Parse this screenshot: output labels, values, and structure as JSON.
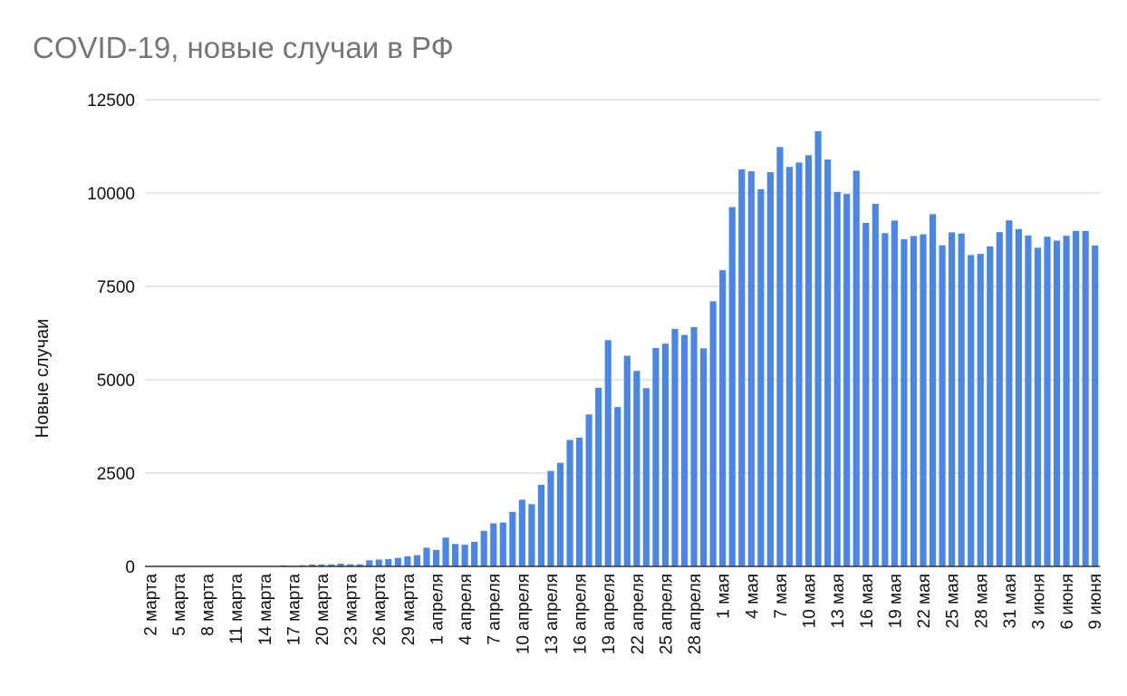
{
  "title": "COVID-19, новые случаи в РФ",
  "chart_data": {
    "type": "bar",
    "title": "COVID-19, новые случаи в РФ",
    "xlabel": "",
    "ylabel": "Новые случаи",
    "ylim": [
      0,
      12500
    ],
    "yticks": [
      0,
      2500,
      5000,
      7500,
      10000,
      12500
    ],
    "grid": true,
    "legend": "none",
    "bar_color": "#4a86e8",
    "x_tick_labels": [
      "2 марта",
      "5 марта",
      "8 марта",
      "11 марта",
      "14 марта",
      "17 марта",
      "20 марта",
      "23 марта",
      "26 марта",
      "29 марта",
      "1 апреля",
      "4 апреля",
      "7 апреля",
      "10 апреля",
      "13 апреля",
      "16 апреля",
      "19 апреля",
      "22 апреля",
      "25 апреля",
      "28 апреля",
      "1 мая",
      "4 мая",
      "7 мая",
      "10 мая",
      "13 мая",
      "16 мая",
      "19 мая",
      "22 мая",
      "25 мая",
      "28 мая",
      "31 мая",
      "3 июня",
      "6 июня",
      "9 июня"
    ],
    "categories": [
      "2 марта",
      "3 марта",
      "4 марта",
      "5 марта",
      "6 марта",
      "7 марта",
      "8 марта",
      "9 марта",
      "10 марта",
      "11 марта",
      "12 марта",
      "13 марта",
      "14 марта",
      "15 марта",
      "16 марта",
      "17 марта",
      "18 марта",
      "19 марта",
      "20 марта",
      "21 марта",
      "22 марта",
      "23 марта",
      "24 марта",
      "25 марта",
      "26 марта",
      "27 марта",
      "28 марта",
      "29 марта",
      "30 марта",
      "31 марта",
      "1 апреля",
      "2 апреля",
      "3 апреля",
      "4 апреля",
      "5 апреля",
      "6 апреля",
      "7 апреля",
      "8 апреля",
      "9 апреля",
      "10 апреля",
      "11 апреля",
      "12 апреля",
      "13 апреля",
      "14 апреля",
      "15 апреля",
      "16 апреля",
      "17 апреля",
      "18 апреля",
      "19 апреля",
      "20 апреля",
      "21 апреля",
      "22 апреля",
      "23 апреля",
      "24 апреля",
      "25 апреля",
      "26 апреля",
      "27 апреля",
      "28 апреля",
      "29 апреля",
      "30 апреля",
      "1 мая",
      "2 мая",
      "3 мая",
      "4 мая",
      "5 мая",
      "6 мая",
      "7 мая",
      "8 мая",
      "9 мая",
      "10 мая",
      "11 мая",
      "12 мая",
      "13 мая",
      "14 мая",
      "15 мая",
      "16 мая",
      "17 мая",
      "18 мая",
      "19 мая",
      "20 мая",
      "21 мая",
      "22 мая",
      "23 мая",
      "24 мая",
      "25 мая",
      "26 мая",
      "27 мая",
      "28 мая",
      "29 мая",
      "30 мая",
      "31 мая",
      "1 июня",
      "2 июня",
      "3 июня",
      "4 июня",
      "5 июня",
      "6 июня",
      "7 июня",
      "8 июня",
      "9 июня"
    ],
    "values": [
      1,
      0,
      1,
      0,
      0,
      7,
      3,
      0,
      3,
      7,
      6,
      6,
      11,
      2,
      29,
      21,
      33,
      52,
      53,
      54,
      71,
      57,
      57,
      163,
      182,
      196,
      228,
      270,
      302,
      500,
      440,
      771,
      601,
      582,
      658,
      954,
      1154,
      1175,
      1459,
      1786,
      1667,
      2186,
      2558,
      2774,
      3388,
      3448,
      4070,
      4785,
      6060,
      4268,
      5642,
      5236,
      4774,
      5849,
      5966,
      6361,
      6198,
      6411,
      5841,
      7099,
      7933,
      9623,
      10633,
      10581,
      10102,
      10559,
      11231,
      10699,
      10817,
      11012,
      11656,
      10899,
      10028,
      9974,
      10598,
      9200,
      9709,
      8926,
      9263,
      8764,
      8849,
      8894,
      9434,
      8599,
      8946,
      8915,
      8338,
      8371,
      8572,
      8952,
      9268,
      9035,
      8863,
      8536,
      8831,
      8726,
      8855,
      8985,
      8984,
      8595
    ]
  }
}
